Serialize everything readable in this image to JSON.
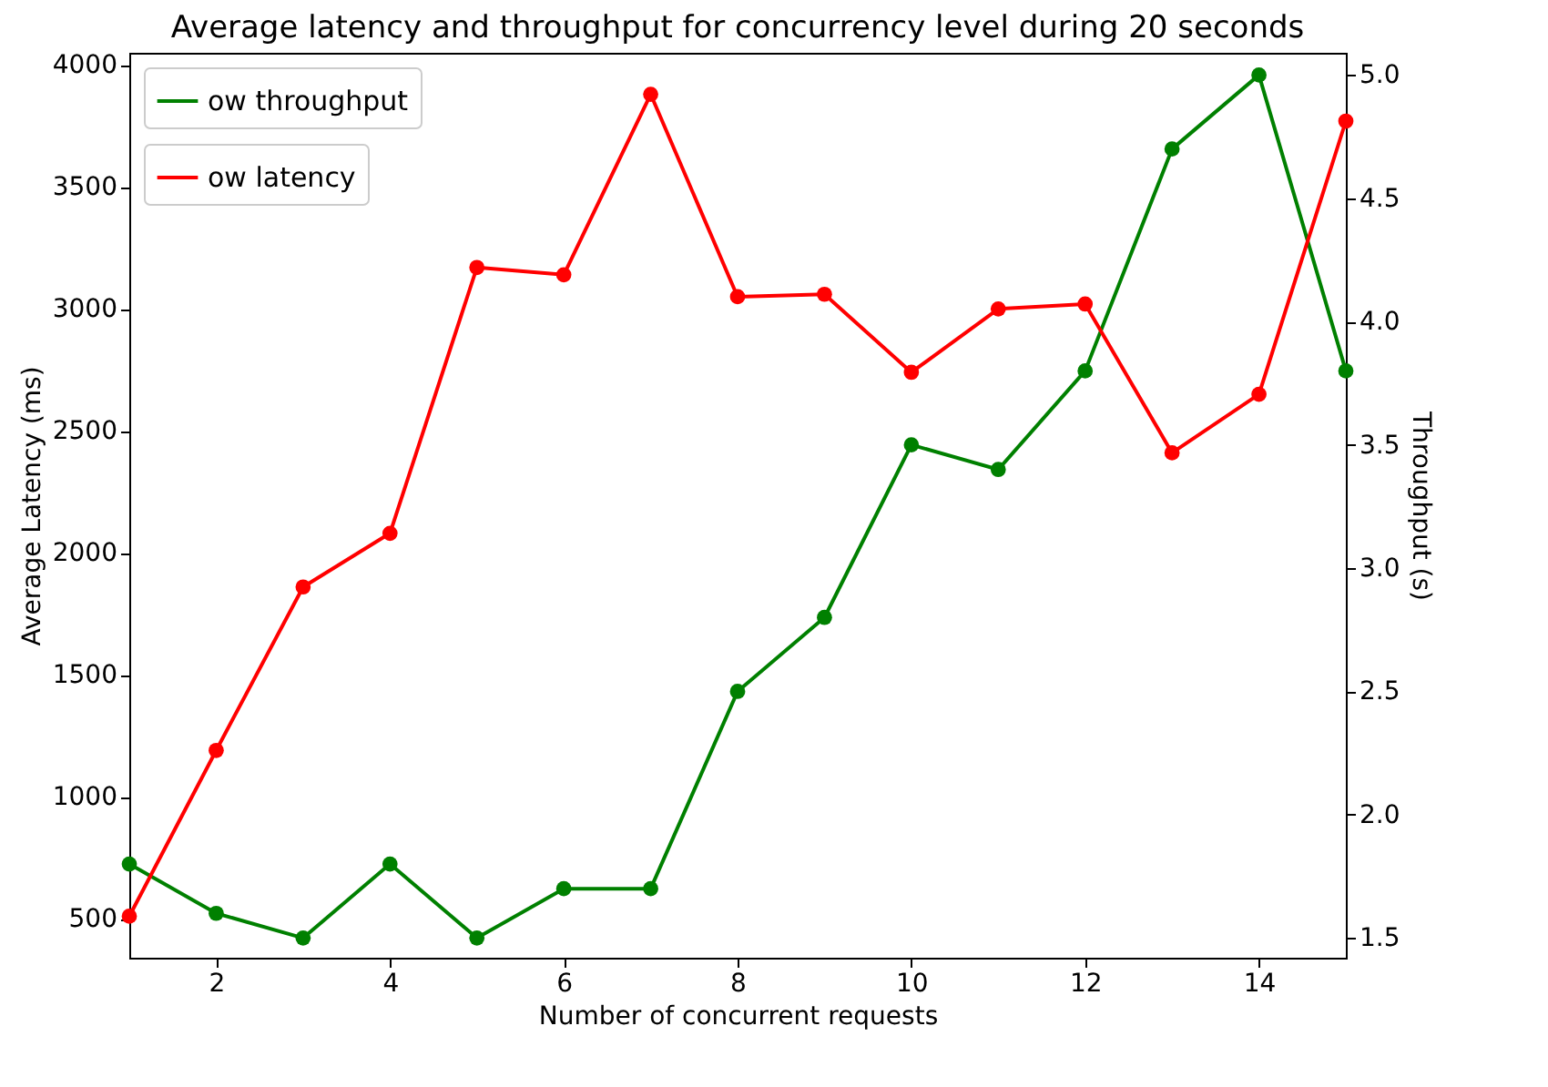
{
  "chart_data": {
    "type": "line",
    "title": "Average latency and throughput for concurrency level during 20 seconds",
    "xlabel": "Number of concurrent requests",
    "ylabel": "Average Latency (ms)",
    "y2label": "Throughput (s)",
    "x": [
      1,
      2,
      3,
      4,
      5,
      6,
      7,
      8,
      9,
      10,
      11,
      12,
      13,
      14,
      15
    ],
    "series": [
      {
        "name": "ow throughput",
        "color": "#008000",
        "axis": "y2",
        "values": [
          1.8,
          1.6,
          1.5,
          1.8,
          1.5,
          1.7,
          1.7,
          2.5,
          2.8,
          3.5,
          3.4,
          3.8,
          4.7,
          5.0,
          3.8
        ]
      },
      {
        "name": "ow latency",
        "color": "#ff0000",
        "values": [
          510,
          1190,
          1860,
          2080,
          3170,
          3140,
          3880,
          3050,
          3060,
          2740,
          3000,
          3020,
          2410,
          2650,
          3770
        ]
      }
    ],
    "xlim": [
      1,
      15
    ],
    "xticks": [
      2,
      4,
      6,
      8,
      10,
      12,
      14
    ],
    "ylim": [
      340,
      4050
    ],
    "yticks": [
      500,
      1000,
      1500,
      2000,
      2500,
      3000,
      3500,
      4000
    ],
    "y2lim": [
      1.42,
      5.09
    ],
    "y2ticks": [
      {
        "value": 1.5,
        "label": "1.5"
      },
      {
        "value": 2,
        "label": "2.0"
      },
      {
        "value": 2.5,
        "label": "2.5"
      },
      {
        "value": 3,
        "label": "3.0"
      },
      {
        "value": 3.5,
        "label": "3.5"
      },
      {
        "value": 4,
        "label": "4.0"
      },
      {
        "value": 4.5,
        "label": "4.5"
      },
      {
        "value": 5,
        "label": "5.0"
      }
    ],
    "legend": "top left",
    "marker": "circle",
    "line_style": "solid",
    "grid": false
  }
}
